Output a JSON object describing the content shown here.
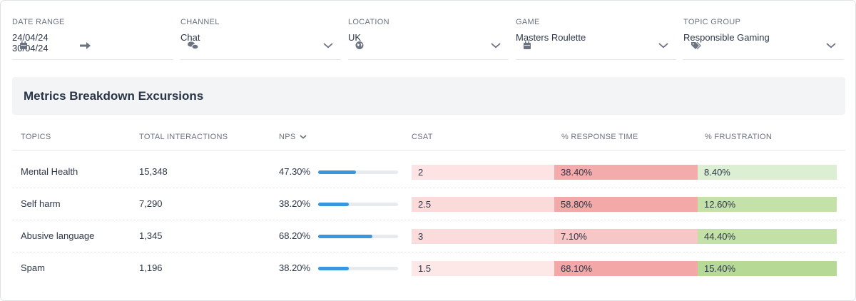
{
  "filters": [
    {
      "label": "DATE RANGE",
      "from": "24/04/24",
      "to": "30/04/24",
      "icon": "calendar"
    },
    {
      "label": "CHANNEL",
      "value": "Chat",
      "icon": "chat"
    },
    {
      "label": "LOCATION",
      "value": "UK",
      "icon": "globe"
    },
    {
      "label": "GAME",
      "value": "Masters Roulette",
      "icon": "calendar"
    },
    {
      "label": "TOPIC GROUP",
      "value": "Responsible Gaming",
      "icon": "tag"
    }
  ],
  "panel": {
    "title": "Metrics Breakdown Excursions"
  },
  "table": {
    "headers": [
      "TOPICS",
      "TOTAL INTERACTIONS",
      "NPS",
      "CSAT",
      "% RESPONSE TIME",
      "% FRUSTRATION"
    ],
    "rows": [
      {
        "topic": "Mental Health",
        "interactions": "15,348",
        "nps": {
          "value": 47.3,
          "label": "47.30%"
        },
        "csat": {
          "label": "2",
          "color": "#fde3e3"
        },
        "response": {
          "label": "38.40%",
          "color": "#f4abab"
        },
        "frustration": {
          "label": "8.40%",
          "color": "#dcefd3"
        }
      },
      {
        "topic": "Self harm",
        "interactions": "7,290",
        "nps": {
          "value": 38.2,
          "label": "38.20%"
        },
        "csat": {
          "label": "2.5",
          "color": "#fbdada"
        },
        "response": {
          "label": "58.80%",
          "color": "#f4a9a9"
        },
        "frustration": {
          "label": "12.60%",
          "color": "#c4e1a9"
        }
      },
      {
        "topic": "Abusive language",
        "interactions": "1,345",
        "nps": {
          "value": 68.2,
          "label": "68.20%"
        },
        "csat": {
          "label": "3",
          "color": "#fbdcdc"
        },
        "response": {
          "label": "7.10%",
          "color": "#f7c6c6"
        },
        "frustration": {
          "label": "44.40%",
          "color": "#c3e0a7"
        }
      },
      {
        "topic": "Spam",
        "interactions": "1,196",
        "nps": {
          "value": 38.2,
          "label": "38.20%"
        },
        "csat": {
          "label": "1.5",
          "color": "#fde7e7"
        },
        "response": {
          "label": "68.10%",
          "color": "#f4a7a7"
        },
        "frustration": {
          "label": "15.40%",
          "color": "#b6d996"
        }
      }
    ]
  }
}
